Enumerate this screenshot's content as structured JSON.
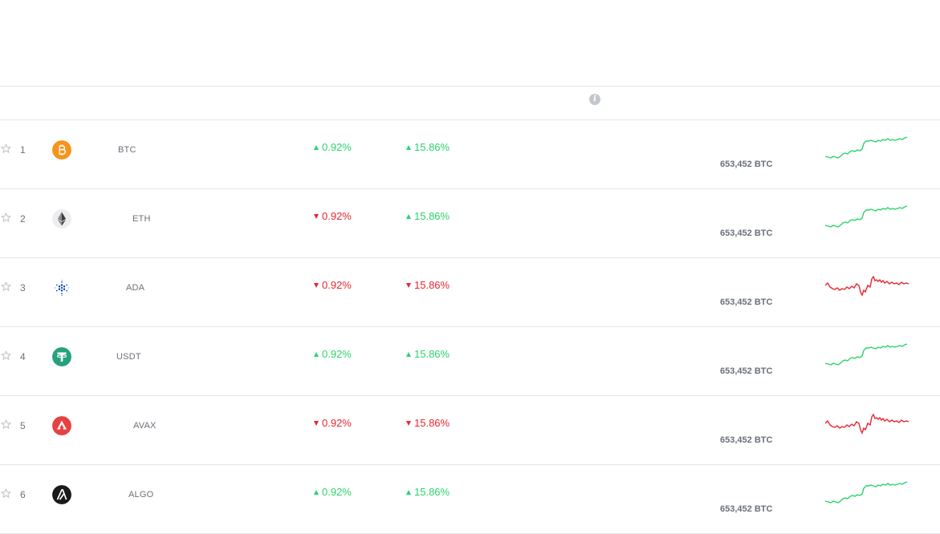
{
  "header": {
    "info_icon_glyph": "i"
  },
  "colors": {
    "up": "#2ad46b",
    "down": "#e8262f",
    "border": "#e3e5e8",
    "muted_text": "#6b7078"
  },
  "rows": [
    {
      "rank": "1",
      "symbol": "BTC",
      "logo": "bitcoin-logo",
      "change_1h": "0.92%",
      "dir_1h": "up",
      "change_24h": "15.86%",
      "dir_24h": "up",
      "volume": "653,452 BTC",
      "sparkline_trend": "up"
    },
    {
      "rank": "2",
      "symbol": "ETH",
      "logo": "ethereum-logo",
      "change_1h": "0.92%",
      "dir_1h": "down",
      "change_24h": "15.86%",
      "dir_24h": "up",
      "volume": "653,452 BTC",
      "sparkline_trend": "up"
    },
    {
      "rank": "3",
      "symbol": "ADA",
      "logo": "cardano-logo",
      "change_1h": "0.92%",
      "dir_1h": "down",
      "change_24h": "15.86%",
      "dir_24h": "down",
      "volume": "653,452 BTC",
      "sparkline_trend": "down"
    },
    {
      "rank": "4",
      "symbol": "USDT",
      "logo": "tether-logo",
      "change_1h": "0.92%",
      "dir_1h": "up",
      "change_24h": "15.86%",
      "dir_24h": "up",
      "volume": "653,452 BTC",
      "sparkline_trend": "up"
    },
    {
      "rank": "5",
      "symbol": "AVAX",
      "logo": "avalanche-logo",
      "change_1h": "0.92%",
      "dir_1h": "down",
      "change_24h": "15.86%",
      "dir_24h": "down",
      "volume": "653,452 BTC",
      "sparkline_trend": "down"
    },
    {
      "rank": "6",
      "symbol": "ALGO",
      "logo": "algorand-logo",
      "change_1h": "0.92%",
      "dir_1h": "up",
      "change_24h": "15.86%",
      "dir_24h": "up",
      "volume": "653,452 BTC",
      "sparkline_trend": "up"
    }
  ]
}
